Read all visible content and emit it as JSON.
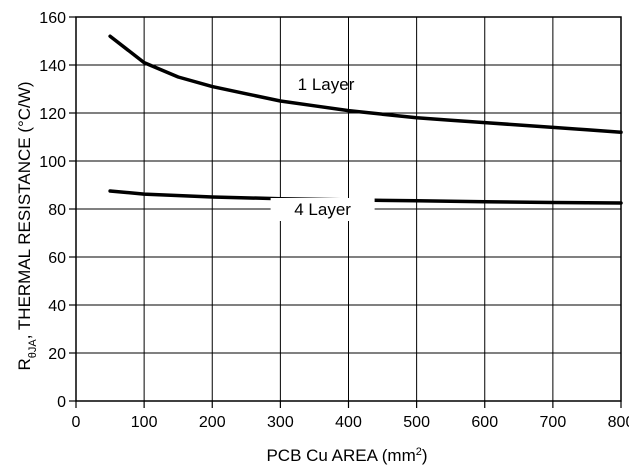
{
  "chart_data": {
    "type": "line",
    "xlabel_main": "PCB Cu AREA (mm",
    "xlabel_sup": "2",
    "xlabel_tail": ")",
    "ylabel_prefix": "R",
    "ylabel_sub": "θJA",
    "ylabel_main": ", THERMAL RESISTANCE (°C/W)",
    "xlim": [
      0,
      800
    ],
    "ylim": [
      0,
      160
    ],
    "xticks": [
      0,
      100,
      200,
      300,
      400,
      500,
      600,
      700,
      800
    ],
    "yticks": [
      0,
      20,
      40,
      60,
      80,
      100,
      120,
      140,
      160
    ],
    "grid": true,
    "colors": {
      "line": "#000000",
      "grid": "#000000",
      "background": "#ffffff"
    },
    "series": [
      {
        "name": "1 Layer",
        "x": [
          50,
          100,
          150,
          200,
          250,
          300,
          350,
          400,
          450,
          500,
          550,
          600,
          650,
          700,
          750,
          800
        ],
        "y": [
          152,
          141,
          135,
          131,
          128,
          125,
          123,
          121,
          119.5,
          118,
          117,
          116,
          115,
          114,
          113,
          112
        ]
      },
      {
        "name": "4 Layer",
        "x": [
          50,
          100,
          200,
          300,
          400,
          500,
          600,
          700,
          800
        ],
        "y": [
          87.5,
          86.2,
          85,
          84.3,
          83.8,
          83.4,
          83,
          82.7,
          82.5
        ]
      }
    ]
  }
}
